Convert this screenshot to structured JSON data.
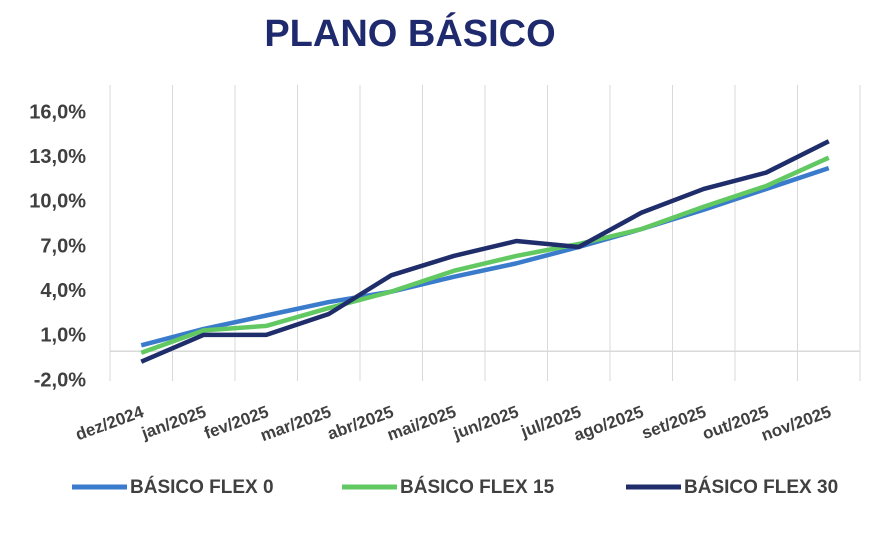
{
  "chart_data": {
    "type": "line",
    "title": "PLANO BÁSICO",
    "categories": [
      "dez/2024",
      "jan/2025",
      "fev/2025",
      "mar/2025",
      "abr/2025",
      "mai/2025",
      "jun/2025",
      "jul/2025",
      "ago/2025",
      "set/2025",
      "out/2025",
      "nov/2025"
    ],
    "series": [
      {
        "name": "BÁSICO FLEX 0",
        "color": "#3b7bcc",
        "values": [
          0.4,
          1.5,
          2.4,
          3.3,
          4.0,
          5.0,
          5.9,
          7.0,
          8.2,
          9.5,
          10.9,
          12.3
        ]
      },
      {
        "name": "BÁSICO FLEX 15",
        "color": "#62c862",
        "values": [
          -0.1,
          1.4,
          1.7,
          2.9,
          4.0,
          5.4,
          6.4,
          7.2,
          8.2,
          9.7,
          11.1,
          13.0
        ]
      },
      {
        "name": "BÁSICO FLEX 30",
        "color": "#1f2d6b",
        "values": [
          -0.7,
          1.1,
          1.1,
          2.5,
          5.1,
          6.4,
          7.4,
          7.0,
          9.3,
          10.9,
          12.0,
          14.1
        ]
      }
    ],
    "ylim": [
      -2,
      16
    ],
    "yticks": [
      {
        "value": -2,
        "label": "-2,0%"
      },
      {
        "value": 1,
        "label": "1,0%"
      },
      {
        "value": 4,
        "label": "4,0%"
      },
      {
        "value": 7,
        "label": "7,0%"
      },
      {
        "value": 10,
        "label": "10,0%"
      },
      {
        "value": 13,
        "label": "13,0%"
      },
      {
        "value": 16,
        "label": "16,0%"
      }
    ],
    "grid": true,
    "legend": "bottom"
  }
}
